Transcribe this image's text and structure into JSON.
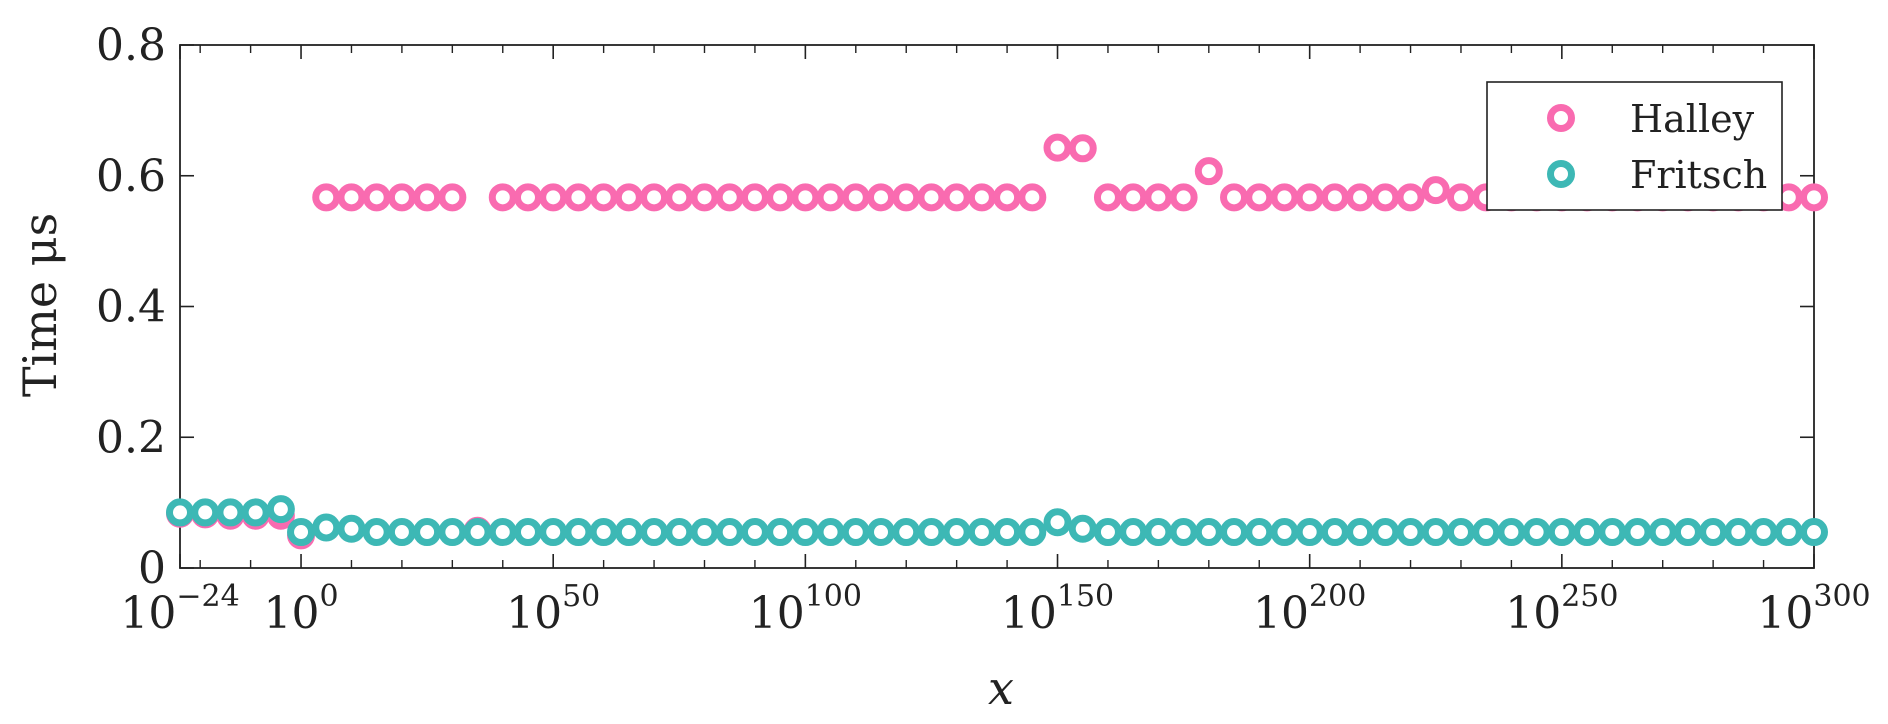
{
  "chart_data": {
    "type": "scatter",
    "xlabel": "x",
    "ylabel": "Time μs",
    "x_scale": "log10",
    "xlim": [
      1e-24,
      1e+300
    ],
    "ylim": [
      0,
      0.8
    ],
    "y_ticks": [
      "0",
      "0.2",
      "0.4",
      "0.6",
      "0.8"
    ],
    "x_ticks": [
      {
        "base": "10",
        "exp": "−24"
      },
      {
        "base": "10",
        "exp": "0"
      },
      {
        "base": "10",
        "exp": "50"
      },
      {
        "base": "10",
        "exp": "100"
      },
      {
        "base": "10",
        "exp": "150"
      },
      {
        "base": "10",
        "exp": "200"
      },
      {
        "base": "10",
        "exp": "250"
      },
      {
        "base": "10",
        "exp": "300"
      }
    ],
    "legend_position": "top-right",
    "series": [
      {
        "name": "Halley",
        "color": "#f96bb0",
        "points": [
          [
            1e-24,
            0.083
          ],
          [
            1e-19,
            0.082
          ],
          [
            1e-14,
            0.08
          ],
          [
            1e-09,
            0.08
          ],
          [
            0.0001,
            0.08
          ],
          [
            1.0,
            0.05
          ],
          [
            100000.0,
            0.567
          ],
          [
            10000000000.0,
            0.567
          ],
          [
            1000000000000000.0,
            0.567
          ],
          [
            1e+20,
            0.567
          ],
          [
            1e+25,
            0.567
          ],
          [
            1e+30,
            0.567
          ],
          [
            1e+35,
            0.057
          ],
          [
            1e+40,
            0.567
          ],
          [
            1e+45,
            0.567
          ],
          [
            1e+50,
            0.567
          ],
          [
            1e+55,
            0.567
          ],
          [
            1e+60,
            0.567
          ],
          [
            1e+65,
            0.567
          ],
          [
            1e+70,
            0.567
          ],
          [
            1e+75,
            0.567
          ],
          [
            1e+80,
            0.567
          ],
          [
            1e+85,
            0.567
          ],
          [
            1e+90,
            0.567
          ],
          [
            1e+95,
            0.567
          ],
          [
            1e+100,
            0.567
          ],
          [
            1e+105,
            0.567
          ],
          [
            1e+110,
            0.567
          ],
          [
            1e+115,
            0.567
          ],
          [
            1e+120,
            0.567
          ],
          [
            1e+125,
            0.567
          ],
          [
            1e+130,
            0.567
          ],
          [
            1e+135,
            0.567
          ],
          [
            1e+140,
            0.567
          ],
          [
            1e+145,
            0.567
          ],
          [
            1e+150,
            0.643
          ],
          [
            1e+155,
            0.642
          ],
          [
            1e+160,
            0.567
          ],
          [
            1e+165,
            0.567
          ],
          [
            1e+170,
            0.567
          ],
          [
            1e+175,
            0.567
          ],
          [
            1e+180,
            0.607
          ],
          [
            1e+185,
            0.567
          ],
          [
            1e+190,
            0.567
          ],
          [
            1e+195,
            0.567
          ],
          [
            1e+200,
            0.567
          ],
          [
            1e+205,
            0.567
          ],
          [
            1e+210,
            0.567
          ],
          [
            1e+215,
            0.567
          ],
          [
            1e+220,
            0.567
          ],
          [
            1e+225,
            0.578
          ],
          [
            1e+230,
            0.567
          ],
          [
            1e+235,
            0.567
          ],
          [
            1e+240,
            0.567
          ],
          [
            1e+245,
            0.567
          ],
          [
            1e+250,
            0.567
          ],
          [
            1e+255,
            0.567
          ],
          [
            1e+260,
            0.567
          ],
          [
            1e+265,
            0.567
          ],
          [
            1e+270,
            0.567
          ],
          [
            1e+275,
            0.567
          ],
          [
            1e+280,
            0.567
          ],
          [
            1e+285,
            0.567
          ],
          [
            1e+290,
            0.567
          ],
          [
            1e+295,
            0.567
          ],
          [
            1e+300,
            0.567
          ]
        ]
      },
      {
        "name": "Fritsch",
        "color": "#3db8b5",
        "points": [
          [
            1e-24,
            0.085
          ],
          [
            1e-19,
            0.085
          ],
          [
            1e-14,
            0.085
          ],
          [
            1e-09,
            0.085
          ],
          [
            0.0001,
            0.09
          ],
          [
            1.0,
            0.055
          ],
          [
            100000.0,
            0.062
          ],
          [
            10000000000.0,
            0.06
          ],
          [
            1000000000000000.0,
            0.055
          ],
          [
            1e+20,
            0.055
          ],
          [
            1e+25,
            0.055
          ],
          [
            1e+30,
            0.055
          ],
          [
            1e+35,
            0.055
          ],
          [
            1e+40,
            0.055
          ],
          [
            1e+45,
            0.055
          ],
          [
            1e+50,
            0.055
          ],
          [
            1e+55,
            0.055
          ],
          [
            1e+60,
            0.055
          ],
          [
            1e+65,
            0.055
          ],
          [
            1e+70,
            0.055
          ],
          [
            1e+75,
            0.055
          ],
          [
            1e+80,
            0.055
          ],
          [
            1e+85,
            0.055
          ],
          [
            1e+90,
            0.055
          ],
          [
            1e+95,
            0.055
          ],
          [
            1e+100,
            0.055
          ],
          [
            1e+105,
            0.055
          ],
          [
            1e+110,
            0.055
          ],
          [
            1e+115,
            0.055
          ],
          [
            1e+120,
            0.055
          ],
          [
            1e+125,
            0.055
          ],
          [
            1e+130,
            0.055
          ],
          [
            1e+135,
            0.055
          ],
          [
            1e+140,
            0.055
          ],
          [
            1e+145,
            0.055
          ],
          [
            1e+150,
            0.07
          ],
          [
            1e+155,
            0.06
          ],
          [
            1e+160,
            0.055
          ],
          [
            1e+165,
            0.055
          ],
          [
            1e+170,
            0.055
          ],
          [
            1e+175,
            0.055
          ],
          [
            1e+180,
            0.055
          ],
          [
            1e+185,
            0.055
          ],
          [
            1e+190,
            0.055
          ],
          [
            1e+195,
            0.055
          ],
          [
            1e+200,
            0.055
          ],
          [
            1e+205,
            0.055
          ],
          [
            1e+210,
            0.055
          ],
          [
            1e+215,
            0.055
          ],
          [
            1e+220,
            0.055
          ],
          [
            1e+225,
            0.055
          ],
          [
            1e+230,
            0.055
          ],
          [
            1e+235,
            0.055
          ],
          [
            1e+240,
            0.055
          ],
          [
            1e+245,
            0.055
          ],
          [
            1e+250,
            0.055
          ],
          [
            1e+255,
            0.055
          ],
          [
            1e+260,
            0.055
          ],
          [
            1e+265,
            0.055
          ],
          [
            1e+270,
            0.055
          ],
          [
            1e+275,
            0.055
          ],
          [
            1e+280,
            0.055
          ],
          [
            1e+285,
            0.055
          ],
          [
            1e+290,
            0.055
          ],
          [
            1e+295,
            0.055
          ],
          [
            1e+300,
            0.055
          ]
        ]
      }
    ]
  }
}
